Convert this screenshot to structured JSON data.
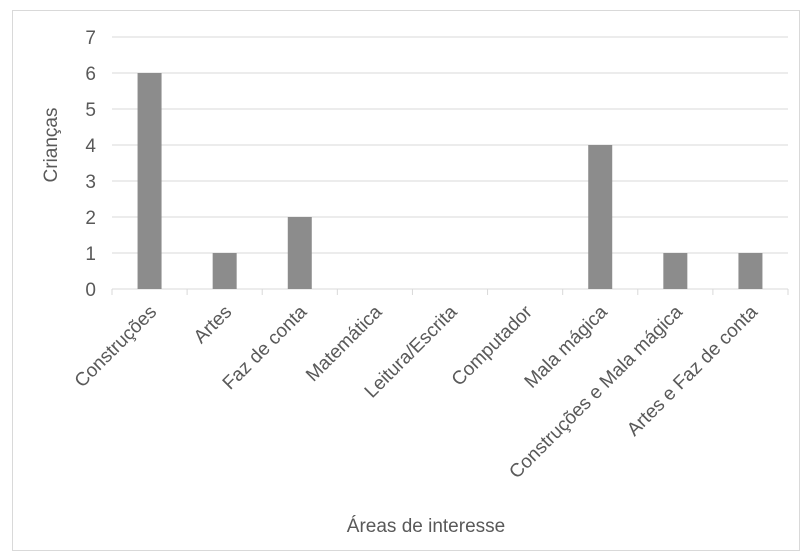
{
  "chart_data": {
    "type": "bar",
    "title": "",
    "xlabel": "Áreas de interesse",
    "ylabel": "Crianças",
    "categories": [
      "Construções",
      "Artes",
      "Faz de conta",
      "Matemática",
      "Leitura/Escrita",
      "Computador",
      "Mala mágica",
      "Construções e Mala mágica",
      "Artes e Faz de conta"
    ],
    "values": [
      6,
      1,
      2,
      0,
      0,
      0,
      4,
      1,
      1
    ],
    "ylim": [
      0,
      7
    ],
    "yticks": [
      0,
      1,
      2,
      3,
      4,
      5,
      6,
      7
    ],
    "grid": true,
    "legend": "none",
    "colors": {
      "bar": "#8c8c8c",
      "grid": "#d9d9d9",
      "text": "#595959"
    }
  }
}
